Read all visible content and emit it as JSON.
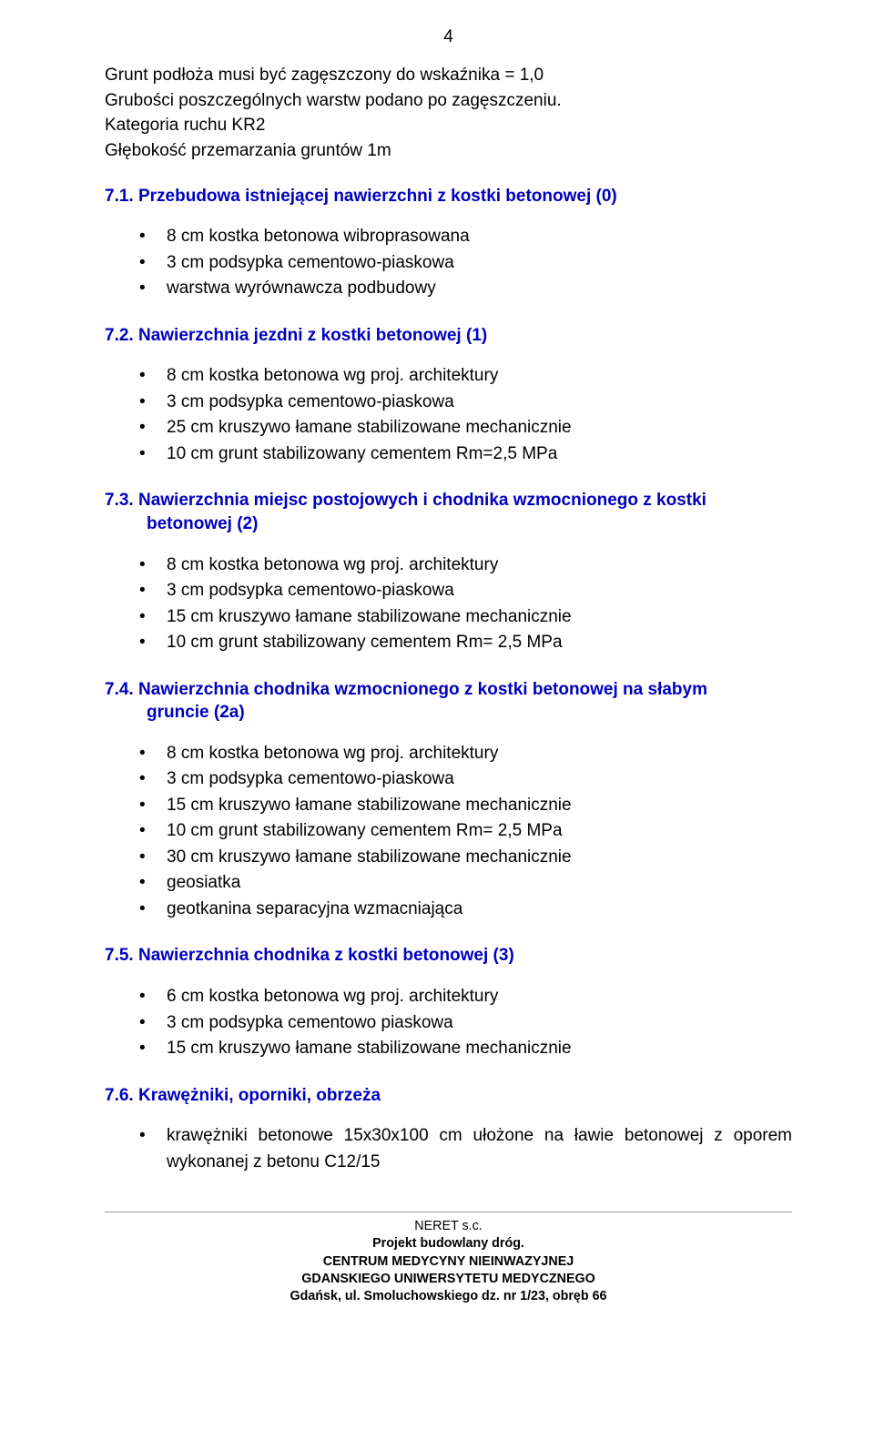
{
  "page_number": "4",
  "intro": {
    "l1": "Grunt podłoża musi być zagęszczony do wskaźnika = 1,0",
    "l2": "Grubości poszczególnych warstw podano po zagęszczeniu.",
    "l3": "Kategoria ruchu KR2",
    "l4": "Głębokość przemarzania gruntów  1m"
  },
  "s71": {
    "heading": "7.1. Przebudowa istniejącej nawierzchni z kostki betonowej (0)",
    "items": [
      "8 cm kostka betonowa wibroprasowana",
      "3 cm podsypka cementowo-piaskowa",
      "warstwa wyrównawcza podbudowy"
    ]
  },
  "s72": {
    "heading": "7.2. Nawierzchnia jezdni z kostki betonowej (1)",
    "items": [
      "8 cm kostka betonowa wg proj. architektury",
      "3 cm podsypka cementowo-piaskowa",
      "25 cm kruszywo łamane stabilizowane mechanicznie",
      "10 cm grunt stabilizowany cementem Rm=2,5 MPa"
    ]
  },
  "s73": {
    "heading_l1": "7.3. Nawierzchnia miejsc postojowych i chodnika wzmocnionego z kostki",
    "heading_l2": "betonowej (2)",
    "items": [
      "8 cm kostka betonowa wg proj. architektury",
      "3 cm podsypka cementowo-piaskowa",
      "15 cm kruszywo łamane stabilizowane mechanicznie",
      "10 cm grunt stabilizowany cementem Rm= 2,5 MPa"
    ]
  },
  "s74": {
    "heading_l1": "7.4. Nawierzchnia chodnika wzmocnionego z kostki betonowej na słabym",
    "heading_l2": "gruncie (2a)",
    "items": [
      "8 cm kostka betonowa wg proj. architektury",
      "3 cm podsypka cementowo-piaskowa",
      "15 cm kruszywo łamane stabilizowane mechanicznie",
      "10 cm grunt stabilizowany cementem Rm= 2,5 MPa",
      "30 cm kruszywo łamane stabilizowane mechanicznie",
      "geosiatka",
      "geotkanina separacyjna wzmacniająca"
    ]
  },
  "s75": {
    "heading": "7.5. Nawierzchnia chodnika z kostki betonowej (3)",
    "items": [
      "6 cm kostka betonowa wg proj. architektury",
      "3 cm podsypka cementowo piaskowa",
      "15 cm kruszywo łamane stabilizowane mechanicznie"
    ]
  },
  "s76": {
    "heading": "7.6. Krawężniki, oporniki, obrzeża",
    "item": "krawężniki betonowe 15x30x100 cm ułożone na ławie betonowej z oporem wykonanej z betonu C12/15"
  },
  "footer": {
    "l1": "NERET s.c.",
    "l2": "Projekt budowlany dróg.",
    "l3": "CENTRUM MEDYCYNY NIEINWAZYJNEJ",
    "l4": "GDANSKIEGO UNIWERSYTETU MEDYCZNEGO",
    "l5": "Gdańsk, ul. Smoluchowskiego dz. nr 1/23, obręb 66"
  }
}
